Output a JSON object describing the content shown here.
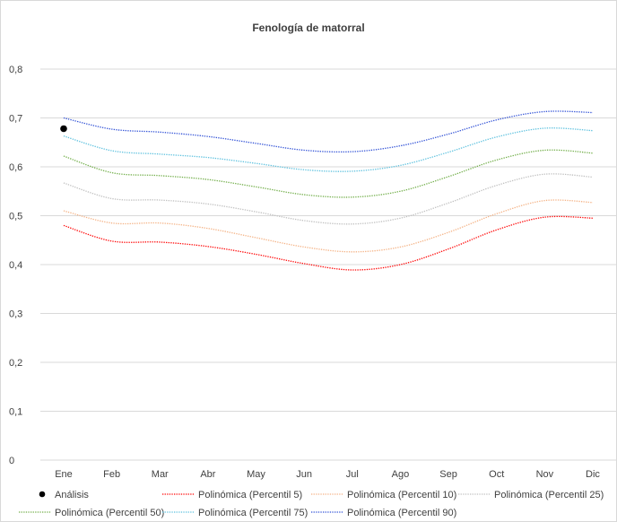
{
  "chart_data": {
    "type": "line",
    "title": "Fenología de matorral",
    "categories": [
      "Ene",
      "Feb",
      "Mar",
      "Abr",
      "May",
      "Jun",
      "Jul",
      "Ago",
      "Sep",
      "Oct",
      "Nov",
      "Dic"
    ],
    "ylim": [
      0,
      0.8
    ],
    "yticks": [
      "0",
      "0,1",
      "0,2",
      "0,3",
      "0,4",
      "0,5",
      "0,6",
      "0,7",
      "0,8"
    ],
    "grid": true,
    "legend_position": "bottom",
    "points": [
      {
        "name": "Análisis",
        "x": "Ene",
        "y": 0.678,
        "color": "#000000"
      }
    ],
    "series": [
      {
        "name": "Polinómica (Percentil 5)",
        "color": "#ff0000",
        "values": [
          0.48,
          0.448,
          0.446,
          0.437,
          0.421,
          0.402,
          0.389,
          0.4,
          0.432,
          0.471,
          0.497,
          0.495
        ]
      },
      {
        "name": "Polinómica (Percentil 10)",
        "color": "#f4b183",
        "values": [
          0.51,
          0.485,
          0.485,
          0.474,
          0.455,
          0.436,
          0.426,
          0.436,
          0.466,
          0.504,
          0.531,
          0.527
        ]
      },
      {
        "name": "Polinómica (Percentil 25)",
        "color": "#bfbfbf",
        "values": [
          0.567,
          0.535,
          0.532,
          0.524,
          0.508,
          0.49,
          0.483,
          0.495,
          0.526,
          0.562,
          0.585,
          0.579
        ]
      },
      {
        "name": "Polinómica (Percentil 50)",
        "color": "#70ad47",
        "values": [
          0.622,
          0.588,
          0.582,
          0.574,
          0.559,
          0.543,
          0.538,
          0.55,
          0.58,
          0.614,
          0.634,
          0.628
        ]
      },
      {
        "name": "Polinómica (Percentil 75)",
        "color": "#5bc0de",
        "values": [
          0.663,
          0.633,
          0.626,
          0.619,
          0.607,
          0.594,
          0.591,
          0.603,
          0.63,
          0.661,
          0.679,
          0.674
        ]
      },
      {
        "name": "Polinómica (Percentil 90)",
        "color": "#2e4fd6",
        "values": [
          0.7,
          0.677,
          0.671,
          0.662,
          0.648,
          0.634,
          0.631,
          0.643,
          0.667,
          0.696,
          0.713,
          0.711
        ]
      }
    ]
  }
}
